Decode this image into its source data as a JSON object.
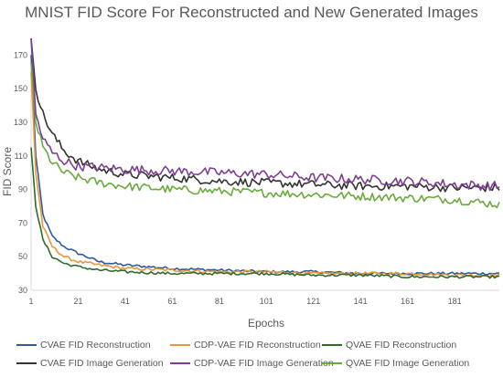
{
  "chart_data": {
    "type": "line",
    "title": "MNIST FID Score For Reconstructed and New Generated Images",
    "xlabel": "Epochs",
    "ylabel": "FID Score",
    "xlim": [
      1,
      200
    ],
    "ylim": [
      30,
      180
    ],
    "x_ticks": [
      1,
      21,
      41,
      61,
      81,
      101,
      121,
      141,
      161,
      181
    ],
    "y_ticks": [
      30,
      50,
      70,
      90,
      110,
      130,
      150,
      170
    ],
    "grid": false,
    "legend_position": "bottom",
    "series": [
      {
        "name": "CVAE FID Reconstruction",
        "color": "#2e5b9a",
        "anchors": [
          [
            1,
            170
          ],
          [
            3,
            110
          ],
          [
            6,
            75
          ],
          [
            10,
            62
          ],
          [
            15,
            56
          ],
          [
            21,
            52
          ],
          [
            30,
            47
          ],
          [
            41,
            45
          ],
          [
            61,
            43
          ],
          [
            81,
            42
          ],
          [
            101,
            41
          ],
          [
            121,
            41
          ],
          [
            141,
            40
          ],
          [
            161,
            40
          ],
          [
            181,
            40
          ],
          [
            200,
            40
          ]
        ],
        "noise": 0.8
      },
      {
        "name": "CDP-VAE FID Reconstruction",
        "color": "#e8963a",
        "anchors": [
          [
            1,
            160
          ],
          [
            3,
            100
          ],
          [
            6,
            68
          ],
          [
            10,
            56
          ],
          [
            15,
            50
          ],
          [
            21,
            47
          ],
          [
            30,
            45
          ],
          [
            41,
            43
          ],
          [
            61,
            42
          ],
          [
            81,
            41
          ],
          [
            101,
            41
          ],
          [
            121,
            40
          ],
          [
            141,
            40
          ],
          [
            161,
            40
          ],
          [
            181,
            39
          ],
          [
            200,
            39
          ]
        ],
        "noise": 0.9
      },
      {
        "name": "QVAE FID Reconstruction",
        "color": "#2f6b2c",
        "anchors": [
          [
            1,
            115
          ],
          [
            3,
            80
          ],
          [
            6,
            60
          ],
          [
            10,
            50
          ],
          [
            15,
            46
          ],
          [
            21,
            44
          ],
          [
            30,
            42
          ],
          [
            41,
            41
          ],
          [
            61,
            40
          ],
          [
            81,
            40
          ],
          [
            101,
            40
          ],
          [
            121,
            39
          ],
          [
            141,
            39
          ],
          [
            161,
            38
          ],
          [
            181,
            38
          ],
          [
            200,
            38
          ]
        ],
        "noise": 0.8
      },
      {
        "name": "CVAE FID Image Generation",
        "color": "#333333",
        "anchors": [
          [
            1,
            180
          ],
          [
            3,
            150
          ],
          [
            6,
            135
          ],
          [
            10,
            123
          ],
          [
            15,
            113
          ],
          [
            21,
            107
          ],
          [
            30,
            102
          ],
          [
            41,
            99
          ],
          [
            61,
            97
          ],
          [
            81,
            95
          ],
          [
            101,
            94
          ],
          [
            121,
            93
          ],
          [
            141,
            92
          ],
          [
            161,
            92
          ],
          [
            181,
            91
          ],
          [
            200,
            91
          ]
        ],
        "noise": 2.5
      },
      {
        "name": "CDP-VAE FID Image Generation",
        "color": "#7e3f91",
        "anchors": [
          [
            1,
            180
          ],
          [
            3,
            135
          ],
          [
            6,
            120
          ],
          [
            10,
            112
          ],
          [
            15,
            107
          ],
          [
            21,
            104
          ],
          [
            30,
            103
          ],
          [
            41,
            102
          ],
          [
            61,
            101
          ],
          [
            81,
            100
          ],
          [
            101,
            99
          ],
          [
            121,
            97
          ],
          [
            141,
            96
          ],
          [
            161,
            95
          ],
          [
            181,
            93
          ],
          [
            200,
            92
          ]
        ],
        "noise": 2.8
      },
      {
        "name": "QVAE FID Image Generation",
        "color": "#6aab3c",
        "anchors": [
          [
            1,
            165
          ],
          [
            3,
            130
          ],
          [
            6,
            115
          ],
          [
            10,
            106
          ],
          [
            15,
            100
          ],
          [
            21,
            97
          ],
          [
            30,
            94
          ],
          [
            41,
            92
          ],
          [
            61,
            90
          ],
          [
            81,
            89
          ],
          [
            101,
            88
          ],
          [
            121,
            87
          ],
          [
            141,
            86
          ],
          [
            161,
            85
          ],
          [
            181,
            84
          ],
          [
            200,
            81
          ]
        ],
        "noise": 2.5
      }
    ]
  }
}
